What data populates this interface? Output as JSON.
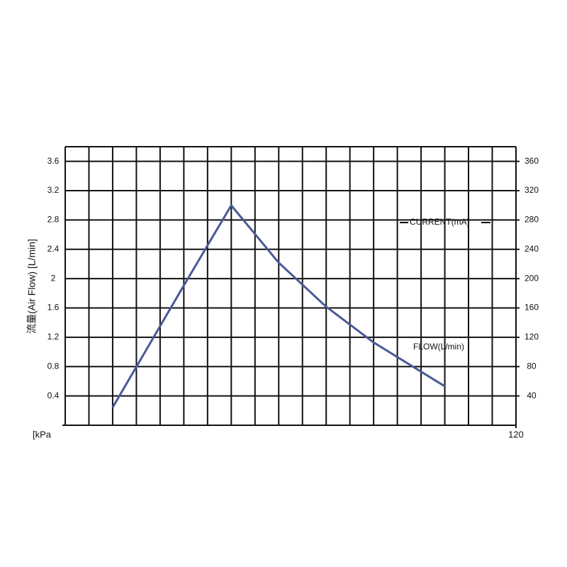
{
  "chart_data": {
    "type": "line",
    "y_label": "流量(Air Flow) [L/min]",
    "x_label": "[kPa",
    "annotations": [
      "CURRENT(mA)",
      "FLOW(L/min)"
    ],
    "x": [
      12.6,
      31.5,
      44.2,
      56.8,
      69.4,
      82.1,
      101.1
    ],
    "series": [
      {
        "color": "#4a5a96",
        "values": [
          0.24,
          1.9,
          3.0,
          2.22,
          1.62,
          1.13,
          0.53
        ]
      }
    ],
    "xlim": [
      0,
      120
    ],
    "xticks": [
      120
    ],
    "ylim": [
      0,
      3.8
    ],
    "yticks": [
      0.4,
      0.8,
      1.2,
      1.6,
      2.0,
      2.4,
      2.8,
      3.2,
      3.6
    ],
    "y2lim": [
      0,
      380
    ],
    "y2ticks": [
      40,
      80,
      120,
      160,
      200,
      240,
      280,
      320,
      360
    ],
    "grid": true
  }
}
